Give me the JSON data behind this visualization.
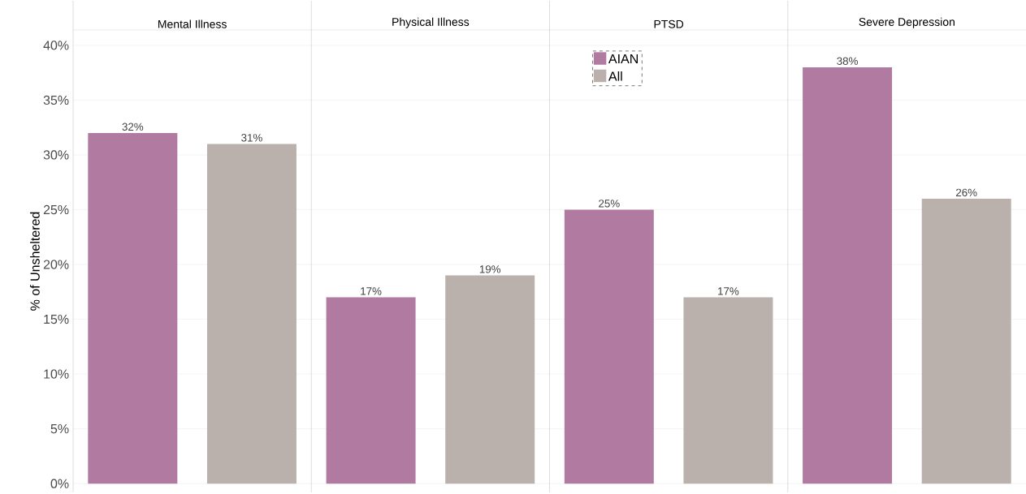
{
  "chart_data": {
    "type": "bar",
    "ylabel": "% of Unsheltered",
    "categories": [
      "Mental Illness",
      "Physical Illness",
      "PTSD",
      "Severe Depression"
    ],
    "series": [
      {
        "name": "AIAN",
        "color": "#b07aa1",
        "values": [
          32,
          17,
          25,
          38
        ],
        "value_labels": [
          "32%",
          "17%",
          "25%",
          "38%"
        ]
      },
      {
        "name": "All",
        "color": "#bab0ac",
        "values": [
          31,
          19,
          17,
          26
        ],
        "value_labels": [
          "31%",
          "19%",
          "17%",
          "26%"
        ]
      }
    ],
    "ylim": [
      -0.8,
      41.4
    ],
    "yticks": [
      {
        "value": 0,
        "label": "0%"
      },
      {
        "value": 5,
        "label": "5%"
      },
      {
        "value": 10,
        "label": "10%"
      },
      {
        "value": 15,
        "label": "15%"
      },
      {
        "value": 20,
        "label": "20%"
      },
      {
        "value": 25,
        "label": "25%"
      },
      {
        "value": 30,
        "label": "30%"
      },
      {
        "value": 35,
        "label": "35%"
      },
      {
        "value": 40,
        "label": "40%"
      }
    ],
    "grid": "y",
    "legend": "top"
  }
}
